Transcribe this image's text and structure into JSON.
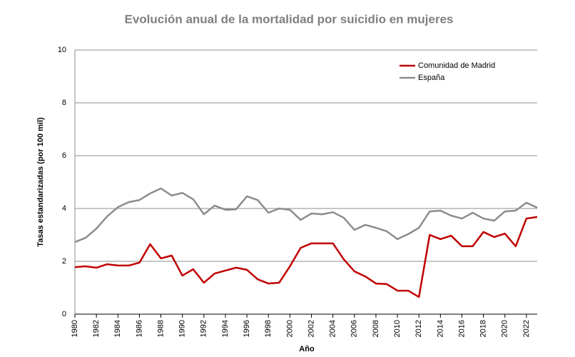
{
  "chart_data": {
    "type": "line",
    "title": "Evolución anual de la mortalidad por suicidio en mujeres",
    "x_label": "Año",
    "y_label": "Tasas estandarizadas (por 100 mil)",
    "x": [
      1980,
      1981,
      1982,
      1983,
      1984,
      1985,
      1986,
      1987,
      1988,
      1989,
      1990,
      1991,
      1992,
      1993,
      1994,
      1995,
      1996,
      1997,
      1998,
      1999,
      2000,
      2001,
      2002,
      2003,
      2004,
      2005,
      2006,
      2007,
      2008,
      2009,
      2010,
      2011,
      2012,
      2013,
      2014,
      2015,
      2016,
      2017,
      2018,
      2019,
      2020,
      2021,
      2022,
      2023
    ],
    "series": [
      {
        "name": "Comunidad de Madrid",
        "color": "#c00000",
        "values": [
          1.78,
          1.81,
          1.76,
          1.89,
          1.84,
          1.84,
          1.95,
          2.65,
          2.11,
          2.22,
          1.46,
          1.7,
          1.19,
          1.54,
          1.65,
          1.76,
          1.68,
          1.32,
          1.16,
          1.19,
          1.81,
          2.51,
          2.68,
          2.68,
          2.68,
          2.08,
          1.62,
          1.43,
          1.16,
          1.14,
          0.89,
          0.89,
          0.65,
          3.0,
          2.84,
          2.97,
          2.57,
          2.57,
          3.11,
          2.92,
          3.05,
          2.57,
          3.62,
          3.68
        ]
      },
      {
        "name": "España",
        "color": "#8c8c8c",
        "values": [
          2.73,
          2.89,
          3.24,
          3.7,
          4.05,
          4.24,
          4.32,
          4.57,
          4.76,
          4.49,
          4.59,
          4.35,
          3.78,
          4.11,
          3.95,
          3.97,
          4.46,
          4.32,
          3.84,
          4.0,
          3.95,
          3.57,
          3.81,
          3.78,
          3.86,
          3.65,
          3.19,
          3.38,
          3.27,
          3.14,
          2.84,
          3.03,
          3.27,
          3.89,
          3.92,
          3.73,
          3.62,
          3.84,
          3.62,
          3.54,
          3.89,
          3.92,
          4.22,
          4.03
        ]
      }
    ],
    "xlim": [
      1980,
      2023
    ],
    "xticks": [
      1980,
      1982,
      1984,
      1986,
      1988,
      1990,
      1992,
      1994,
      1996,
      1998,
      2000,
      2002,
      2004,
      2006,
      2008,
      2010,
      2012,
      2014,
      2016,
      2018,
      2020,
      2022
    ],
    "ylim": [
      0,
      10
    ],
    "yticks": [
      0,
      2,
      4,
      6,
      8,
      10
    ],
    "grid": true,
    "legend": "upper right"
  }
}
